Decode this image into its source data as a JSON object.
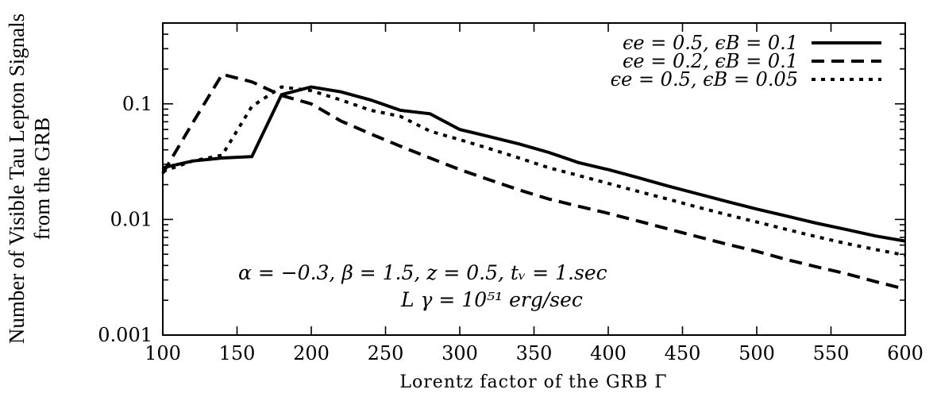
{
  "chart_data": {
    "type": "line",
    "title": "",
    "xlabel": "Lorentz factor of the GRB Γ",
    "ylabel_lines": [
      "Number of Visible Tau Lepton Signals",
      "from the GRB"
    ],
    "xlim": [
      100,
      600
    ],
    "ylim": [
      0.001,
      0.5
    ],
    "yscale": "log",
    "grid": false,
    "legend_position": "top-right",
    "x_ticks": [
      100,
      150,
      200,
      250,
      300,
      350,
      400,
      450,
      500,
      550,
      600
    ],
    "x_tick_labels": [
      "100",
      "150",
      "200",
      "250",
      "300",
      "350",
      "400",
      "450",
      "500",
      "550",
      "600"
    ],
    "y_ticks": [
      0.001,
      0.01,
      0.1
    ],
    "y_tick_labels": [
      "0.001",
      "0.01",
      "0.1"
    ],
    "series": [
      {
        "name": "ϵe = 0.5, ϵB = 0.1",
        "dash": "solid",
        "x": [
          100,
          120,
          140,
          160,
          180,
          200,
          220,
          240,
          260,
          280,
          300,
          320,
          340,
          360,
          380,
          400,
          420,
          440,
          460,
          480,
          500,
          520,
          540,
          560,
          580,
          600
        ],
        "y": [
          0.028,
          0.032,
          0.034,
          0.035,
          0.12,
          0.14,
          0.127,
          0.108,
          0.088,
          0.082,
          0.06,
          0.052,
          0.045,
          0.038,
          0.031,
          0.027,
          0.023,
          0.0195,
          0.0167,
          0.0143,
          0.0123,
          0.0107,
          0.0093,
          0.0082,
          0.0072,
          0.0065
        ]
      },
      {
        "name": "ϵe = 0.2, ϵB = 0.1",
        "dash": "dashed",
        "x": [
          100,
          120,
          140,
          160,
          180,
          200,
          220,
          240,
          260,
          280,
          300,
          320,
          340,
          360,
          380,
          400,
          420,
          440,
          460,
          480,
          500,
          520,
          540,
          560,
          580,
          600
        ],
        "y": [
          0.025,
          0.068,
          0.18,
          0.155,
          0.118,
          0.1,
          0.071,
          0.055,
          0.043,
          0.034,
          0.027,
          0.022,
          0.018,
          0.015,
          0.013,
          0.0113,
          0.0097,
          0.0083,
          0.0071,
          0.0061,
          0.0053,
          0.0045,
          0.0039,
          0.0034,
          0.0029,
          0.0025
        ]
      },
      {
        "name": "ϵe = 0.5, ϵB = 0.05",
        "dash": "dotted",
        "x": [
          100,
          120,
          140,
          160,
          180,
          200,
          220,
          240,
          260,
          280,
          300,
          320,
          340,
          360,
          380,
          400,
          420,
          440,
          460,
          480,
          500,
          520,
          540,
          560,
          580,
          600
        ],
        "y": [
          0.026,
          0.032,
          0.036,
          0.095,
          0.14,
          0.13,
          0.108,
          0.088,
          0.078,
          0.058,
          0.049,
          0.041,
          0.034,
          0.028,
          0.024,
          0.0205,
          0.0175,
          0.015,
          0.0128,
          0.011,
          0.0095,
          0.0082,
          0.0071,
          0.0062,
          0.0055,
          0.0049
        ]
      }
    ],
    "annotations": [
      "α = −0.3, β = 1.5, z = 0.5, tᵥ = 1.sec",
      "L γ  = 10⁵¹    erg/sec"
    ]
  }
}
